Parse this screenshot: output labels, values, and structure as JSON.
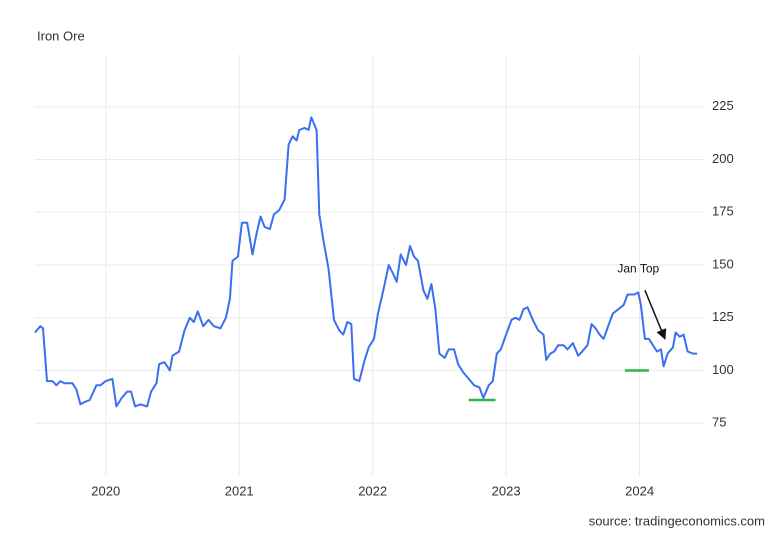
{
  "chart_data": {
    "type": "line",
    "title": "Iron Ore",
    "source": "source: tradingeconomics.com",
    "color": "#3a6ff2",
    "x": [
      2019.47,
      2019.51,
      2019.53,
      2019.56,
      2019.6,
      2019.63,
      2019.66,
      2019.69,
      2019.75,
      2019.78,
      2019.81,
      2019.84,
      2019.88,
      2019.93,
      2019.96,
      2020.0,
      2020.05,
      2020.08,
      2020.12,
      2020.16,
      2020.19,
      2020.22,
      2020.26,
      2020.31,
      2020.34,
      2020.38,
      2020.4,
      2020.44,
      2020.48,
      2020.5,
      2020.55,
      2020.59,
      2020.63,
      2020.66,
      2020.69,
      2020.73,
      2020.77,
      2020.81,
      2020.86,
      2020.9,
      2020.93,
      2020.95,
      2020.99,
      2021.02,
      2021.06,
      2021.1,
      2021.13,
      2021.16,
      2021.19,
      2021.23,
      2021.26,
      2021.3,
      2021.34,
      2021.37,
      2021.4,
      2021.43,
      2021.45,
      2021.49,
      2021.52,
      2021.54,
      2021.58,
      2021.6,
      2021.63,
      2021.67,
      2021.71,
      2021.75,
      2021.78,
      2021.81,
      2021.84,
      2021.86,
      2021.9,
      2021.94,
      2021.97,
      2022.01,
      2022.04,
      2022.08,
      2022.12,
      2022.16,
      2022.18,
      2022.21,
      2022.25,
      2022.28,
      2022.31,
      2022.34,
      2022.38,
      2022.41,
      2022.44,
      2022.47,
      2022.5,
      2022.54,
      2022.57,
      2022.61,
      2022.64,
      2022.68,
      2022.72,
      2022.76,
      2022.8,
      2022.83,
      2022.87,
      2022.9,
      2022.93,
      2022.96,
      2023.0,
      2023.04,
      2023.07,
      2023.1,
      2023.13,
      2023.16,
      2023.2,
      2023.24,
      2023.28,
      2023.3,
      2023.33,
      2023.36,
      2023.39,
      2023.43,
      2023.46,
      2023.5,
      2023.54,
      2023.57,
      2023.61,
      2023.64,
      2023.67,
      2023.7,
      2023.73,
      2023.77,
      2023.8,
      2023.84,
      2023.88,
      2023.91,
      2023.96,
      2023.99,
      2024.01,
      2024.04,
      2024.07,
      2024.1,
      2024.13,
      2024.16,
      2024.18,
      2024.21,
      2024.25,
      2024.27,
      2024.3,
      2024.33,
      2024.36,
      2024.4,
      2024.43
    ],
    "values": [
      118,
      121,
      120,
      95,
      95,
      93,
      95,
      94,
      94,
      91,
      84,
      85,
      86,
      93,
      93,
      95,
      96,
      83,
      87,
      90,
      90,
      83,
      84,
      83,
      90,
      94,
      103,
      104,
      100,
      107,
      109,
      119,
      125,
      123,
      128,
      121,
      124,
      121,
      120,
      125,
      134,
      152,
      154,
      170,
      170,
      155,
      165,
      173,
      168,
      167,
      174,
      176,
      181,
      207,
      211,
      209,
      214,
      215,
      214,
      220,
      214,
      174,
      162,
      148,
      124,
      119,
      117,
      123,
      122,
      96,
      95,
      105,
      111,
      115,
      127,
      138,
      150,
      145,
      142,
      155,
      150,
      159,
      154,
      152,
      138,
      134,
      141,
      129,
      108,
      106,
      110,
      110,
      103,
      99,
      96,
      93,
      92,
      87,
      93,
      95,
      108,
      110,
      117,
      124,
      125,
      124,
      129,
      130,
      124,
      119,
      117,
      105,
      108,
      109,
      112,
      112,
      110,
      113,
      107,
      109,
      112,
      122,
      120,
      117,
      115,
      122,
      127,
      129,
      131,
      136,
      136,
      137,
      131,
      115,
      115,
      112,
      109,
      110,
      102,
      108,
      111,
      118,
      116,
      117,
      109,
      108,
      108
    ],
    "xlim": [
      2019.47,
      2024.49
    ],
    "xticks": [
      2020,
      2021,
      2022,
      2023,
      2024
    ],
    "ylim": [
      50,
      250
    ],
    "yticks": [
      75,
      100,
      125,
      150,
      175,
      200,
      225
    ],
    "grid": true,
    "levels": [
      {
        "y": 86,
        "x": [
          2022.72,
          2022.92
        ],
        "color": "#2fb34a"
      },
      {
        "y": 100,
        "x": [
          2023.89,
          2024.07
        ],
        "color": "#2fb34a"
      }
    ],
    "annotations": [
      {
        "text": "Jan Top",
        "x": 2023.99,
        "y": 148,
        "arrow_from": [
          2024.04,
          138
        ],
        "arrow_to": [
          2024.19,
          115
        ]
      }
    ]
  }
}
